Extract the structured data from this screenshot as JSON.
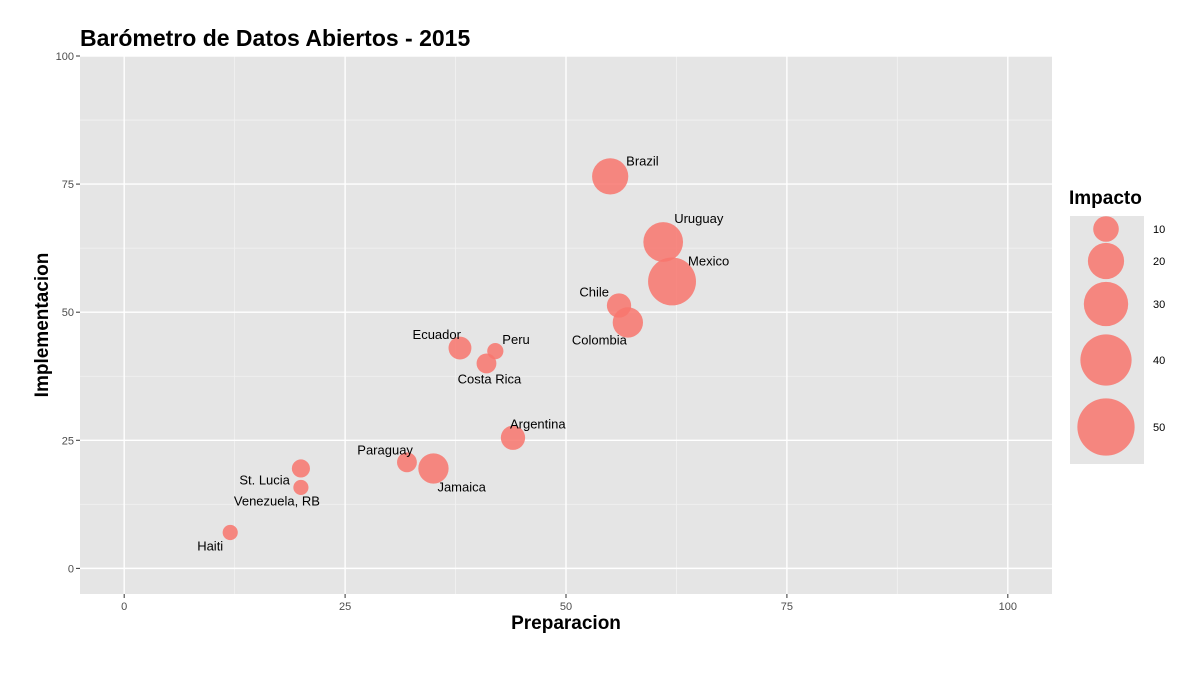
{
  "chart_data": {
    "type": "scatter",
    "title": "Barómetro de Datos Abiertos - 2015",
    "xlabel": "Preparacion",
    "ylabel": "Implementacion",
    "xlim": [
      -5,
      105
    ],
    "ylim": [
      -5,
      100
    ],
    "x_ticks": [
      0,
      25,
      50,
      75,
      100
    ],
    "y_ticks": [
      0,
      25,
      50,
      75,
      100
    ],
    "grid": true,
    "point_color": "#F8766D",
    "panel_color": "#E5E5E5",
    "legend": {
      "title": "Impacto",
      "position": "right",
      "sizes": [
        10,
        20,
        30,
        40,
        50
      ]
    },
    "points": [
      {
        "label": "Brazil",
        "x": 55,
        "y": 76.5,
        "size": 20
      },
      {
        "label": "Uruguay",
        "x": 61,
        "y": 63.7,
        "size": 24
      },
      {
        "label": "Mexico",
        "x": 62,
        "y": 56,
        "size": 35
      },
      {
        "label": "Chile",
        "x": 56,
        "y": 51.3,
        "size": 9
      },
      {
        "label": "Colombia",
        "x": 57,
        "y": 48,
        "size": 14
      },
      {
        "label": "Ecuador",
        "x": 38,
        "y": 43,
        "size": 8
      },
      {
        "label": "Peru",
        "x": 42,
        "y": 42.4,
        "size": 4
      },
      {
        "label": "Costa Rica",
        "x": 41,
        "y": 40,
        "size": 6
      },
      {
        "label": "Argentina",
        "x": 44,
        "y": 25.5,
        "size": 9
      },
      {
        "label": "Paraguay",
        "x": 32,
        "y": 20.7,
        "size": 6
      },
      {
        "label": "Jamaica",
        "x": 35,
        "y": 19.5,
        "size": 14
      },
      {
        "label": "St. Lucia",
        "x": 20,
        "y": 19.5,
        "size": 5
      },
      {
        "label": "Venezuela, RB",
        "x": 20,
        "y": 15.8,
        "size": 3.5
      },
      {
        "label": "Haiti",
        "x": 12,
        "y": 7,
        "size": 3.5
      }
    ]
  }
}
